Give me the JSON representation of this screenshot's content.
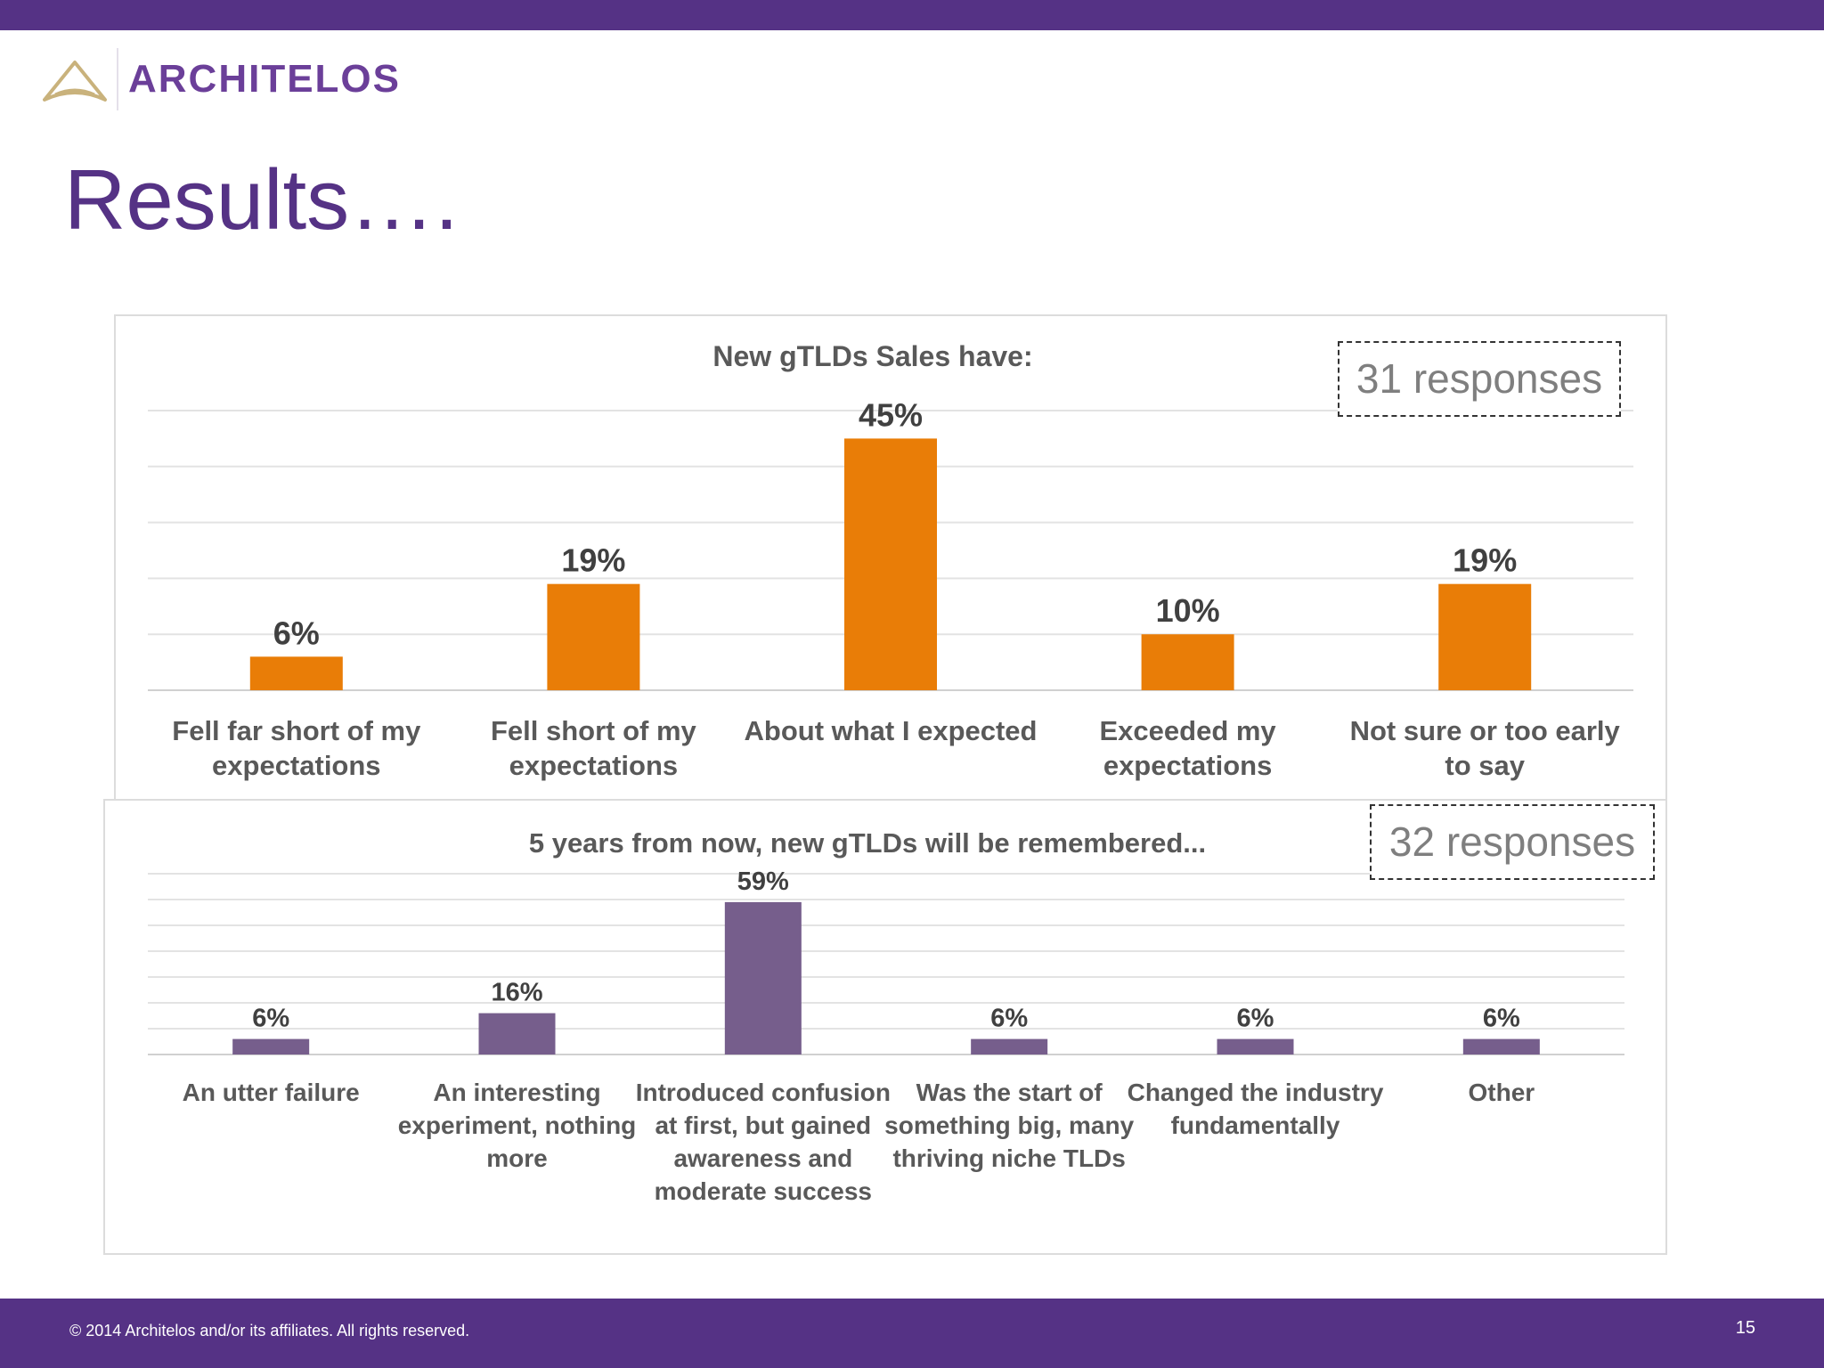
{
  "brand": {
    "name": "ARCHITELOS",
    "primary_color": "#553285",
    "logo_color": "#c9b27c"
  },
  "slide": {
    "title": "Results….",
    "page_number": "15"
  },
  "footer": {
    "copyright": "© 2014 Architelos and/or its affiliates. All rights reserved."
  },
  "responses": {
    "chart1": "31 responses",
    "chart2": "32 responses"
  },
  "chart_data": [
    {
      "type": "bar",
      "title": "New gTLDs Sales have:",
      "categories": [
        "Fell far short of my expectations",
        "Fell short of my expectations",
        "About what I expected",
        "Exceeded my expectations",
        "Not sure or too early to say"
      ],
      "values": [
        6,
        19,
        45,
        10,
        19
      ],
      "data_labels": [
        "6%",
        "19%",
        "45%",
        "10%",
        "19%"
      ],
      "ylim": [
        0,
        50
      ],
      "grid": true,
      "color": "#e97d07"
    },
    {
      "type": "bar",
      "title": "5 years from now, new gTLDs will be remembered...",
      "categories": [
        "An utter failure",
        "An interesting experiment, nothing more",
        "Introduced confusion at first, but gained awareness and moderate success",
        "Was the start of something big, many thriving niche TLDs",
        "Changed the industry fundamentally",
        "Other"
      ],
      "values": [
        6,
        16,
        59,
        6,
        6,
        6
      ],
      "data_labels": [
        "6%",
        "16%",
        "59%",
        "6%",
        "6%",
        "6%"
      ],
      "ylim": [
        0,
        70
      ],
      "grid": true,
      "color": "#765e8c"
    }
  ]
}
